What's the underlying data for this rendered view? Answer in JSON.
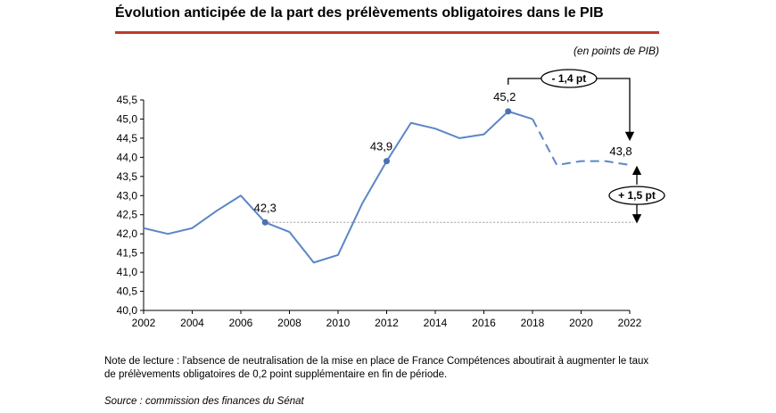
{
  "title": "Évolution anticipée de la part des prélèvements obligatoires dans le PIB",
  "unit_note": "(en points de PIB)",
  "reading_note": "Note de lecture : l'absence de neutralisation de la mise en place de France Compétences aboutirait à augmenter le taux de prélèvements obligatoires de 0,2 point supplémentaire en fin de période.",
  "source": "Source : commission des finances du Sénat",
  "colors": {
    "line": "#5b86c6",
    "marker": "#4a72b0",
    "title_rule": "#c0392b",
    "reference": "#999999"
  },
  "chart_data": {
    "type": "line",
    "title": "Évolution anticipée de la part des prélèvements obligatoires dans le PIB",
    "xlabel": "",
    "ylabel": "",
    "xlim": [
      2002,
      2022
    ],
    "ylim": [
      40.0,
      45.5
    ],
    "x_ticks": [
      2002,
      2004,
      2006,
      2008,
      2010,
      2012,
      2014,
      2016,
      2018,
      2020,
      2022
    ],
    "y_ticks": [
      40.0,
      40.5,
      41.0,
      41.5,
      42.0,
      42.5,
      43.0,
      43.5,
      44.0,
      44.5,
      45.0,
      45.5
    ],
    "y_tick_labels": [
      "40,0",
      "40,5",
      "41,0",
      "41,5",
      "42,0",
      "42,5",
      "43,0",
      "43,5",
      "44,0",
      "44,5",
      "45,0",
      "45,5"
    ],
    "x_tick_labels": [
      "2002",
      "2004",
      "2006",
      "2008",
      "2010",
      "2012",
      "2014",
      "2016",
      "2018",
      "2020",
      "2022"
    ],
    "grid": false,
    "series": [
      {
        "style": "solid",
        "x": [
          2002,
          2003,
          2004,
          2005,
          2006,
          2007,
          2008,
          2009,
          2010,
          2011,
          2012,
          2013,
          2014,
          2015,
          2016,
          2017,
          2018
        ],
        "values": [
          42.15,
          42.0,
          42.15,
          42.6,
          43.0,
          42.3,
          42.05,
          41.25,
          41.45,
          42.8,
          43.9,
          44.9,
          44.75,
          44.5,
          44.6,
          45.2,
          45.0
        ]
      },
      {
        "style": "dashed",
        "x": [
          2018,
          2019,
          2020,
          2021,
          2022
        ],
        "values": [
          45.0,
          43.8,
          43.9,
          43.9,
          43.8
        ]
      }
    ],
    "highlighted_points": [
      {
        "x": 2007,
        "y": 42.3,
        "label": "42,3"
      },
      {
        "x": 2012,
        "y": 43.9,
        "label": "43,9"
      },
      {
        "x": 2017,
        "y": 45.2,
        "label": "45,2"
      },
      {
        "x": 2022,
        "y": 43.8,
        "label": "43,8"
      }
    ],
    "reference_line": {
      "y": 42.3,
      "from_x": 2007,
      "to_x": 2022,
      "style": "dotted"
    },
    "annotations": [
      {
        "text": "- 1,4 pt",
        "from_x": 2017,
        "to_x": 2022,
        "from_y": 45.2,
        "to_y": 43.8
      },
      {
        "text": "+ 1,5 pt",
        "x": 2022,
        "from_y": 42.3,
        "to_y": 43.8
      }
    ]
  }
}
